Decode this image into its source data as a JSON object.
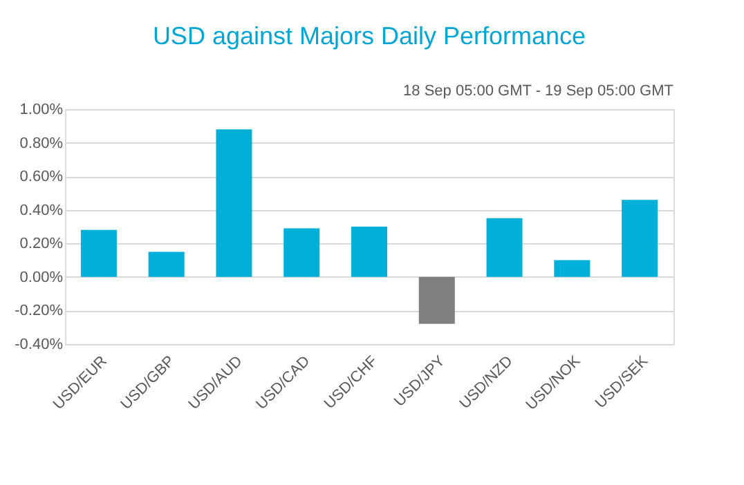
{
  "chart_data": {
    "type": "bar",
    "title": "USD against Majors Daily Performance",
    "annotations": [
      "18 Sep 05:00 GMT - 19 Sep 05:00 GMT"
    ],
    "categories": [
      "USD/EUR",
      "USD/GBP",
      "USD/AUD",
      "USD/CAD",
      "USD/CHF",
      "USD/JPY",
      "USD/NZD",
      "USD/NOK",
      "USD/SEK"
    ],
    "values": [
      0.28,
      0.15,
      0.88,
      0.29,
      0.3,
      -0.28,
      0.35,
      0.1,
      0.46
    ],
    "colors": [
      "#00b0d8",
      "#00b0d8",
      "#00b0d8",
      "#00b0d8",
      "#00b0d8",
      "#7f7f7f",
      "#00b0d8",
      "#00b0d8",
      "#00b0d8"
    ],
    "ylim": [
      -0.4,
      1.0
    ],
    "yticks": [
      {
        "value": -0.4,
        "label": "-0.40%"
      },
      {
        "value": -0.2,
        "label": "-0.20%"
      },
      {
        "value": 0,
        "label": "0.00%"
      },
      {
        "value": 0.2,
        "label": "0.20%"
      },
      {
        "value": 0.4,
        "label": "0.40%"
      },
      {
        "value": 0.6,
        "label": "0.60%"
      },
      {
        "value": 0.8,
        "label": "0.80%"
      },
      {
        "value": 1.0,
        "label": "1.00%"
      }
    ],
    "grid": "y"
  }
}
